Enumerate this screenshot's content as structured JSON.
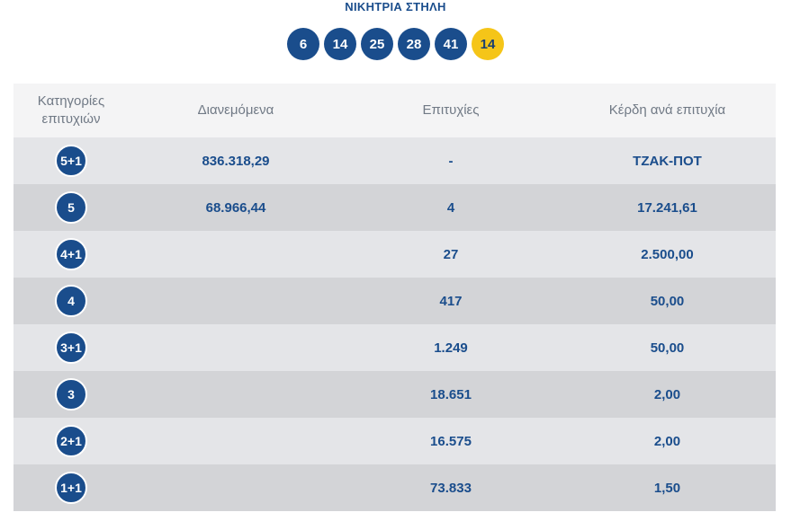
{
  "winning_title": "ΝΙΚΗΤΡΙΑ ΣΤΗΛΗ",
  "winning_numbers": [
    "6",
    "14",
    "25",
    "28",
    "41"
  ],
  "joker_number": "14",
  "colors": {
    "ball": "#1a4d8c",
    "joker": "#f5c518",
    "text_primary": "#1a4d8c",
    "header_text": "#707985"
  },
  "table": {
    "headers": {
      "categories": "Κατηγορίες επιτυχιών",
      "distributed": "Διανεμόμενα",
      "winners": "Επιτυχίες",
      "prize_per_winner": "Κέρδη ανά επιτυχία"
    },
    "rows": [
      {
        "category": "5+1",
        "distributed": "836.318,29",
        "winners": "-",
        "prize": "ΤΖΑΚ-ΠΟΤ"
      },
      {
        "category": "5",
        "distributed": "68.966,44",
        "winners": "4",
        "prize": "17.241,61"
      },
      {
        "category": "4+1",
        "distributed": "",
        "winners": "27",
        "prize": "2.500,00"
      },
      {
        "category": "4",
        "distributed": "",
        "winners": "417",
        "prize": "50,00"
      },
      {
        "category": "3+1",
        "distributed": "",
        "winners": "1.249",
        "prize": "50,00"
      },
      {
        "category": "3",
        "distributed": "",
        "winners": "18.651",
        "prize": "2,00"
      },
      {
        "category": "2+1",
        "distributed": "",
        "winners": "16.575",
        "prize": "2,00"
      },
      {
        "category": "1+1",
        "distributed": "",
        "winners": "73.833",
        "prize": "1,50"
      }
    ]
  }
}
